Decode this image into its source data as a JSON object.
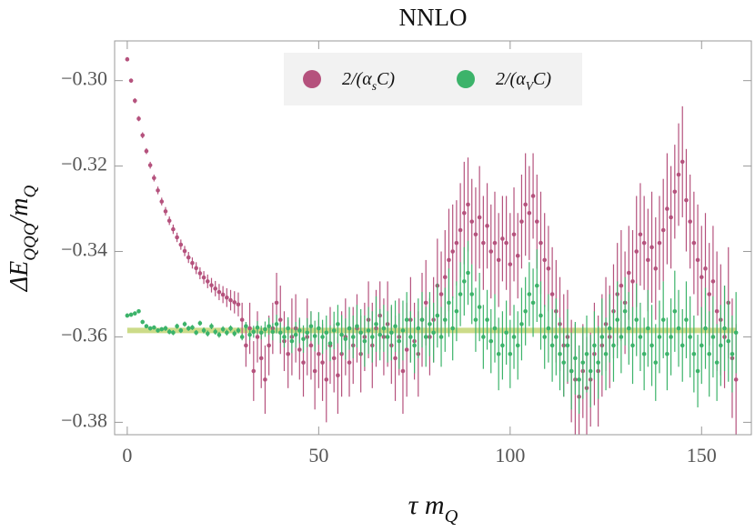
{
  "chart_data": {
    "type": "errorbar-scatter",
    "title": "NNLO",
    "x_label": [
      {
        "text": "τ m"
      },
      {
        "text": "Q",
        "sub": true
      }
    ],
    "y_label": [
      {
        "text": "ΔE"
      },
      {
        "text": "QQQ",
        "sub": true
      },
      {
        "text": "/m"
      },
      {
        "text": "Q",
        "sub": true
      }
    ],
    "xlim": [
      -3.3,
      163
    ],
    "ylim": [
      -0.3829,
      -0.2907
    ],
    "xticks": [
      0,
      50,
      100,
      150
    ],
    "yticks": [
      {
        "value": -0.38,
        "label": "−0.38"
      },
      {
        "value": -0.36,
        "label": "−0.36"
      },
      {
        "value": -0.34,
        "label": "−0.34"
      },
      {
        "value": -0.32,
        "label": "−0.32"
      },
      {
        "value": -0.3,
        "label": "−0.30"
      }
    ],
    "legend": "upper center",
    "reference_line": {
      "value": -0.3585,
      "color": "#c3d574"
    },
    "x": [
      0,
      1,
      2,
      3,
      4,
      5,
      6,
      7,
      8,
      9,
      10,
      11,
      12,
      13,
      14,
      15,
      16,
      17,
      18,
      19,
      20,
      21,
      22,
      23,
      24,
      25,
      26,
      27,
      28,
      29,
      30,
      31,
      32,
      33,
      34,
      35,
      36,
      37,
      38,
      39,
      40,
      41,
      42,
      43,
      44,
      45,
      46,
      47,
      48,
      49,
      50,
      51,
      52,
      53,
      54,
      55,
      56,
      57,
      58,
      59,
      60,
      61,
      62,
      63,
      64,
      65,
      66,
      67,
      68,
      69,
      70,
      71,
      72,
      73,
      74,
      75,
      76,
      77,
      78,
      79,
      80,
      81,
      82,
      83,
      84,
      85,
      86,
      87,
      88,
      89,
      90,
      91,
      92,
      93,
      94,
      95,
      96,
      97,
      98,
      99,
      100,
      101,
      102,
      103,
      104,
      105,
      106,
      107,
      108,
      109,
      110,
      111,
      112,
      113,
      114,
      115,
      116,
      117,
      118,
      119,
      120,
      121,
      122,
      123,
      124,
      125,
      126,
      127,
      128,
      129,
      130,
      131,
      132,
      133,
      134,
      135,
      136,
      137,
      138,
      139,
      140,
      141,
      142,
      143,
      144,
      145,
      146,
      147,
      148,
      149,
      150,
      151,
      152,
      153,
      154,
      155,
      156,
      157,
      158,
      159
    ],
    "series": [
      {
        "name": [
          {
            "text": "2/(α"
          },
          {
            "text": "s",
            "sub": true
          },
          {
            "text": "C)"
          }
        ],
        "color": "#b5527d",
        "values": [
          -0.295,
          -0.3,
          -0.3047,
          -0.3089,
          -0.3128,
          -0.3165,
          -0.3198,
          -0.3228,
          -0.3257,
          -0.3283,
          -0.3306,
          -0.3328,
          -0.3348,
          -0.3367,
          -0.3384,
          -0.3399,
          -0.3414,
          -0.3427,
          -0.3439,
          -0.3451,
          -0.3461,
          -0.347,
          -0.3479,
          -0.3487,
          -0.3495,
          -0.3501,
          -0.3508,
          -0.3514,
          -0.3519,
          -0.3524,
          -0.356,
          -0.362,
          -0.358,
          -0.368,
          -0.36,
          -0.365,
          -0.37,
          -0.362,
          -0.358,
          -0.352,
          -0.356,
          -0.361,
          -0.364,
          -0.36,
          -0.358,
          -0.363,
          -0.366,
          -0.36,
          -0.362,
          -0.368,
          -0.364,
          -0.366,
          -0.37,
          -0.362,
          -0.365,
          -0.369,
          -0.364,
          -0.36,
          -0.366,
          -0.362,
          -0.358,
          -0.364,
          -0.36,
          -0.356,
          -0.362,
          -0.358,
          -0.355,
          -0.36,
          -0.357,
          -0.362,
          -0.365,
          -0.36,
          -0.368,
          -0.363,
          -0.356,
          -0.361,
          -0.364,
          -0.356,
          -0.352,
          -0.36,
          -0.356,
          -0.348,
          -0.35,
          -0.346,
          -0.342,
          -0.34,
          -0.338,
          -0.335,
          -0.331,
          -0.329,
          -0.333,
          -0.336,
          -0.332,
          -0.338,
          -0.334,
          -0.34,
          -0.338,
          -0.342,
          -0.337,
          -0.338,
          -0.343,
          -0.336,
          -0.341,
          -0.333,
          -0.329,
          -0.331,
          -0.327,
          -0.333,
          -0.338,
          -0.342,
          -0.344,
          -0.35,
          -0.354,
          -0.357,
          -0.362,
          -0.36,
          -0.368,
          -0.37,
          -0.374,
          -0.368,
          -0.372,
          -0.37,
          -0.364,
          -0.368,
          -0.362,
          -0.357,
          -0.36,
          -0.354,
          -0.35,
          -0.348,
          -0.352,
          -0.345,
          -0.347,
          -0.34,
          -0.336,
          -0.338,
          -0.342,
          -0.339,
          -0.344,
          -0.338,
          -0.335,
          -0.33,
          -0.332,
          -0.326,
          -0.322,
          -0.319,
          -0.328,
          -0.333,
          -0.338,
          -0.342,
          -0.346,
          -0.344,
          -0.35,
          -0.347,
          -0.354,
          -0.356,
          -0.36,
          -0.352,
          -0.365,
          -0.37
        ],
        "errors": [
          0.0005,
          0.0005,
          0.0006,
          0.0006,
          0.0007,
          0.0007,
          0.0008,
          0.0008,
          0.0009,
          0.0009,
          0.001,
          0.001,
          0.0011,
          0.0011,
          0.0012,
          0.0012,
          0.0013,
          0.0013,
          0.0014,
          0.0014,
          0.0015,
          0.0016,
          0.0017,
          0.0018,
          0.0019,
          0.002,
          0.0022,
          0.0024,
          0.0026,
          0.0028,
          0.004,
          0.005,
          0.006,
          0.007,
          0.006,
          0.007,
          0.008,
          0.007,
          0.006,
          0.007,
          0.008,
          0.007,
          0.008,
          0.009,
          0.008,
          0.007,
          0.008,
          0.009,
          0.008,
          0.009,
          0.008,
          0.009,
          0.01,
          0.009,
          0.008,
          0.009,
          0.01,
          0.009,
          0.008,
          0.009,
          0.008,
          0.009,
          0.008,
          0.009,
          0.01,
          0.009,
          0.008,
          0.009,
          0.01,
          0.009,
          0.01,
          0.009,
          0.01,
          0.011,
          0.01,
          0.009,
          0.01,
          0.011,
          0.01,
          0.009,
          0.01,
          0.011,
          0.01,
          0.011,
          0.012,
          0.011,
          0.01,
          0.011,
          0.012,
          0.011,
          0.01,
          0.011,
          0.012,
          0.011,
          0.01,
          0.011,
          0.012,
          0.011,
          0.01,
          0.011,
          0.012,
          0.011,
          0.01,
          0.011,
          0.012,
          0.011,
          0.01,
          0.011,
          0.012,
          0.011,
          0.01,
          0.011,
          0.012,
          0.011,
          0.012,
          0.011,
          0.012,
          0.013,
          0.012,
          0.011,
          0.012,
          0.011,
          0.012,
          0.013,
          0.012,
          0.011,
          0.012,
          0.011,
          0.012,
          0.013,
          0.012,
          0.011,
          0.012,
          0.013,
          0.012,
          0.011,
          0.012,
          0.013,
          0.012,
          0.011,
          0.012,
          0.013,
          0.012,
          0.011,
          0.012,
          0.013,
          0.012,
          0.011,
          0.012,
          0.013,
          0.012,
          0.013,
          0.012,
          0.013,
          0.014,
          0.013,
          0.012,
          0.013,
          0.014,
          0.013
        ]
      },
      {
        "name": [
          {
            "text": "2/(α"
          },
          {
            "text": "V",
            "sub": true
          },
          {
            "text": "C)"
          }
        ],
        "color": "#3cb36a",
        "values": [
          -0.355,
          -0.3548,
          -0.3545,
          -0.354,
          -0.3565,
          -0.3575,
          -0.358,
          -0.3578,
          -0.3585,
          -0.3582,
          -0.358,
          -0.3588,
          -0.359,
          -0.3575,
          -0.3585,
          -0.357,
          -0.358,
          -0.3578,
          -0.359,
          -0.3568,
          -0.3585,
          -0.3592,
          -0.3575,
          -0.3588,
          -0.3595,
          -0.3582,
          -0.359,
          -0.358,
          -0.3592,
          -0.3585,
          -0.36,
          -0.3575,
          -0.3595,
          -0.3588,
          -0.3578,
          -0.359,
          -0.3582,
          -0.3575,
          -0.3588,
          -0.357,
          -0.359,
          -0.36,
          -0.358,
          -0.361,
          -0.3595,
          -0.3585,
          -0.3605,
          -0.359,
          -0.3575,
          -0.3598,
          -0.358,
          -0.36,
          -0.359,
          -0.3615,
          -0.3585,
          -0.357,
          -0.3595,
          -0.3605,
          -0.358,
          -0.36,
          -0.3575,
          -0.359,
          -0.361,
          -0.3585,
          -0.36,
          -0.357,
          -0.3595,
          -0.358,
          -0.36,
          -0.359,
          -0.3575,
          -0.361,
          -0.3585,
          -0.356,
          -0.36,
          -0.362,
          -0.358,
          -0.356,
          -0.36,
          -0.357,
          -0.359,
          -0.355,
          -0.36,
          -0.356,
          -0.352,
          -0.358,
          -0.354,
          -0.35,
          -0.347,
          -0.345,
          -0.35,
          -0.356,
          -0.353,
          -0.36,
          -0.356,
          -0.361,
          -0.358,
          -0.364,
          -0.362,
          -0.359,
          -0.364,
          -0.36,
          -0.362,
          -0.357,
          -0.354,
          -0.35,
          -0.352,
          -0.348,
          -0.355,
          -0.36,
          -0.358,
          -0.362,
          -0.36,
          -0.364,
          -0.366,
          -0.362,
          -0.368,
          -0.365,
          -0.37,
          -0.366,
          -0.364,
          -0.368,
          -0.362,
          -0.366,
          -0.36,
          -0.364,
          -0.358,
          -0.362,
          -0.356,
          -0.36,
          -0.354,
          -0.358,
          -0.362,
          -0.356,
          -0.36,
          -0.364,
          -0.358,
          -0.362,
          -0.366,
          -0.36,
          -0.356,
          -0.364,
          -0.36,
          -0.354,
          -0.358,
          -0.362,
          -0.356,
          -0.36,
          -0.364,
          -0.368,
          -0.362,
          -0.358,
          -0.364,
          -0.36,
          -0.366,
          -0.362,
          -0.358,
          -0.361,
          -0.364,
          -0.359
        ],
        "errors": [
          0.0005,
          0.0005,
          0.0005,
          0.0005,
          0.0005,
          0.0005,
          0.0005,
          0.0005,
          0.0005,
          0.0005,
          0.0006,
          0.0006,
          0.0006,
          0.0006,
          0.0006,
          0.0006,
          0.0006,
          0.0006,
          0.0006,
          0.0006,
          0.0007,
          0.0007,
          0.0007,
          0.0007,
          0.0007,
          0.0007,
          0.0007,
          0.0007,
          0.0007,
          0.0007,
          0.0008,
          0.001,
          0.0012,
          0.0014,
          0.0015,
          0.0016,
          0.0018,
          0.002,
          0.002,
          0.0022,
          0.0024,
          0.0025,
          0.0026,
          0.0028,
          0.003,
          0.003,
          0.0032,
          0.0034,
          0.0035,
          0.0036,
          0.0038,
          0.004,
          0.004,
          0.0042,
          0.0044,
          0.0045,
          0.0046,
          0.0048,
          0.005,
          0.005,
          0.005,
          0.0055,
          0.006,
          0.0055,
          0.006,
          0.0065,
          0.006,
          0.0055,
          0.006,
          0.0065,
          0.006,
          0.0065,
          0.007,
          0.0065,
          0.006,
          0.0065,
          0.007,
          0.0065,
          0.007,
          0.0075,
          0.007,
          0.0075,
          0.007,
          0.0075,
          0.008,
          0.0075,
          0.007,
          0.0075,
          0.008,
          0.0075,
          0.007,
          0.0075,
          0.008,
          0.0075,
          0.007,
          0.0075,
          0.008,
          0.0085,
          0.008,
          0.0075,
          0.008,
          0.0075,
          0.008,
          0.0085,
          0.008,
          0.0075,
          0.008,
          0.0085,
          0.008,
          0.0075,
          0.008,
          0.0085,
          0.009,
          0.0085,
          0.008,
          0.0085,
          0.009,
          0.0085,
          0.008,
          0.0085,
          0.009,
          0.0085,
          0.008,
          0.0085,
          0.009,
          0.0085,
          0.008,
          0.0085,
          0.009,
          0.0085,
          0.008,
          0.0085,
          0.009,
          0.0085,
          0.008,
          0.0085,
          0.009,
          0.0095,
          0.009,
          0.0085,
          0.009,
          0.0085,
          0.009,
          0.0095,
          0.009,
          0.0085,
          0.009,
          0.0095,
          0.009,
          0.0085,
          0.009,
          0.0095,
          0.01,
          0.0095,
          0.009,
          0.0095,
          0.01,
          0.0095,
          0.009,
          0.0095
        ]
      }
    ]
  }
}
